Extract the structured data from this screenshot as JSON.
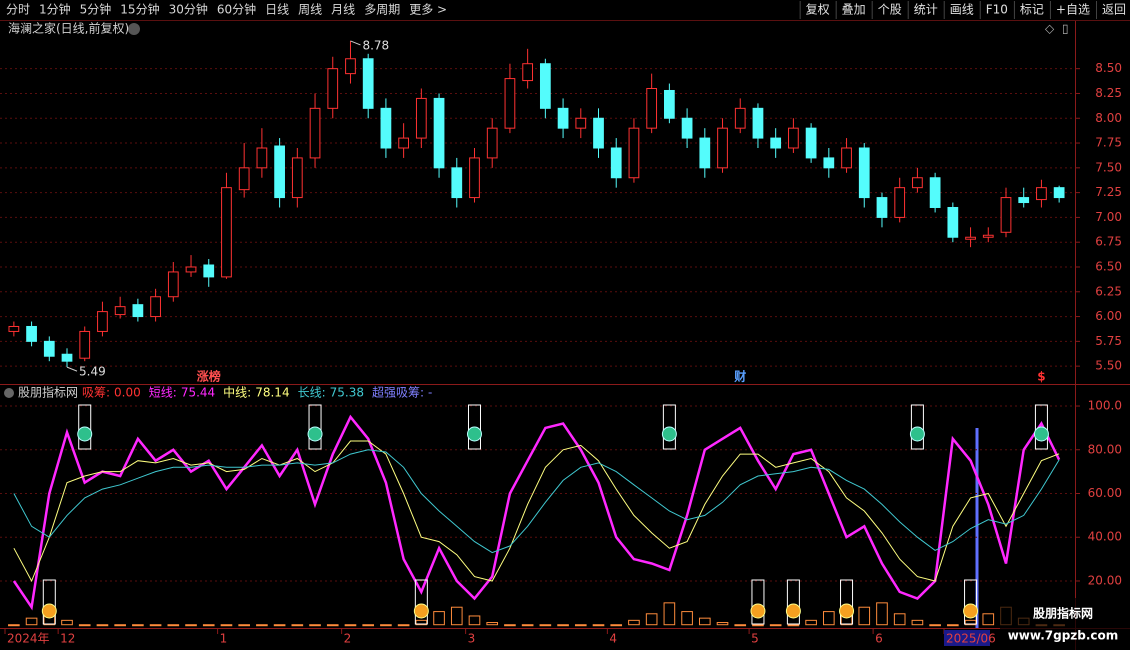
{
  "toolbar": {
    "left": [
      "分时",
      "1分钟",
      "5分钟",
      "15分钟",
      "30分钟",
      "60分钟",
      "日线",
      "周线",
      "月线",
      "多周期",
      "更多 >"
    ],
    "right": [
      "复权",
      "叠加",
      "个股",
      "统计",
      "画线",
      "F10",
      "标记",
      "+自选",
      "返回"
    ]
  },
  "watermark": {
    "title": "股朋指标网",
    "url": "www.7gpzb.com"
  },
  "chart_data": [
    {
      "type": "candlestick",
      "title": "海澜之家(日线,前复权)",
      "categories": [
        "2024年",
        null,
        null,
        "12",
        null,
        null,
        null,
        null,
        null,
        null,
        null,
        null,
        "1",
        null,
        null,
        null,
        null,
        null,
        null,
        "2",
        null,
        null,
        null,
        null,
        null,
        null,
        "3",
        null,
        null,
        null,
        null,
        null,
        null,
        null,
        "4",
        null,
        null,
        null,
        null,
        null,
        null,
        null,
        "5",
        null,
        null,
        null,
        null,
        null,
        null,
        "6",
        null,
        null,
        null,
        "2025/06",
        null,
        null,
        null,
        null,
        null,
        null
      ],
      "open": [
        5.85,
        5.9,
        5.75,
        5.62,
        5.58,
        5.85,
        6.02,
        6.12,
        6.0,
        6.2,
        6.45,
        6.52,
        6.4,
        7.28,
        7.5,
        7.72,
        7.2,
        7.6,
        8.1,
        8.45,
        8.6,
        8.1,
        7.7,
        7.8,
        8.2,
        7.5,
        7.2,
        7.6,
        7.9,
        8.38,
        8.55,
        8.1,
        7.9,
        8.0,
        7.7,
        7.4,
        7.9,
        8.28,
        8.0,
        7.8,
        7.5,
        7.9,
        8.1,
        7.8,
        7.7,
        7.9,
        7.6,
        7.5,
        7.7,
        7.2,
        7.0,
        7.3,
        7.4,
        7.1,
        6.78,
        6.8,
        6.85,
        7.2,
        7.18,
        7.3
      ],
      "high": [
        5.95,
        5.95,
        5.8,
        5.68,
        5.9,
        6.15,
        6.2,
        6.18,
        6.28,
        6.55,
        6.62,
        6.58,
        7.45,
        7.75,
        7.9,
        7.8,
        7.7,
        8.25,
        8.62,
        8.78,
        8.65,
        8.2,
        7.95,
        8.3,
        8.25,
        7.6,
        7.7,
        8.0,
        8.55,
        8.7,
        8.6,
        8.2,
        8.1,
        8.1,
        7.8,
        8.0,
        8.45,
        8.35,
        8.1,
        7.9,
        8.0,
        8.2,
        8.15,
        7.9,
        8.0,
        7.95,
        7.7,
        7.8,
        7.75,
        7.25,
        7.4,
        7.5,
        7.45,
        7.15,
        6.9,
        6.9,
        7.3,
        7.3,
        7.38,
        7.32
      ],
      "low": [
        5.8,
        5.7,
        5.55,
        5.49,
        5.55,
        5.8,
        5.98,
        5.95,
        5.95,
        6.15,
        6.4,
        6.3,
        6.38,
        7.2,
        7.4,
        7.1,
        7.1,
        7.5,
        8.0,
        8.35,
        8.0,
        7.6,
        7.6,
        7.7,
        7.4,
        7.1,
        7.15,
        7.5,
        7.85,
        8.3,
        8.0,
        7.8,
        7.8,
        7.6,
        7.3,
        7.35,
        7.85,
        7.95,
        7.7,
        7.4,
        7.45,
        7.85,
        7.7,
        7.6,
        7.65,
        7.55,
        7.4,
        7.45,
        7.1,
        6.9,
        6.95,
        7.25,
        7.05,
        6.75,
        6.7,
        6.75,
        6.8,
        7.1,
        7.1,
        7.15
      ],
      "close": [
        5.9,
        5.75,
        5.6,
        5.55,
        5.85,
        6.05,
        6.1,
        6.0,
        6.2,
        6.45,
        6.5,
        6.4,
        7.3,
        7.5,
        7.7,
        7.2,
        7.6,
        8.1,
        8.5,
        8.6,
        8.1,
        7.7,
        7.8,
        8.2,
        7.5,
        7.2,
        7.6,
        7.9,
        8.4,
        8.55,
        8.1,
        7.9,
        8.0,
        7.7,
        7.4,
        7.9,
        8.3,
        8.0,
        7.8,
        7.5,
        7.9,
        8.1,
        7.8,
        7.7,
        7.9,
        7.6,
        7.5,
        7.7,
        7.2,
        7.0,
        7.3,
        7.4,
        7.1,
        6.8,
        6.8,
        6.82,
        7.2,
        7.15,
        7.3,
        7.2
      ],
      "up_color": "#ff3232",
      "down_color": "#54fcfc",
      "max_label": 8.78,
      "min_label": 5.49,
      "events": [
        {
          "index": 11,
          "label": "涨榜",
          "color": "#ff5050"
        },
        {
          "index": 41,
          "label": "财",
          "color": "#5aa0ff"
        },
        {
          "index": 58,
          "label": "$",
          "color": "#ff3232"
        }
      ],
      "ylim": [
        5.33,
        8.89
      ],
      "yticks": [
        {
          "value": 5.5,
          "label": "5.50"
        },
        {
          "value": 5.75,
          "label": "5.75"
        },
        {
          "value": 6.0,
          "label": "6.00"
        },
        {
          "value": 6.25,
          "label": "6.25"
        },
        {
          "value": 6.5,
          "label": "6.50"
        },
        {
          "value": 6.75,
          "label": "6.75"
        },
        {
          "value": 7.0,
          "label": "7.00"
        },
        {
          "value": 7.25,
          "label": "7.25"
        },
        {
          "value": 7.5,
          "label": "7.50"
        },
        {
          "value": 7.75,
          "label": "7.75"
        },
        {
          "value": 8.0,
          "label": "8.00"
        },
        {
          "value": 8.25,
          "label": "8.25"
        },
        {
          "value": 8.5,
          "label": "8.50"
        }
      ],
      "grid": true
    },
    {
      "type": "indicator",
      "title": "股朋指标网",
      "series": [
        {
          "name": "吸筹:",
          "kind": "bar",
          "color": "#ff8c3c",
          "value_label": "0.00",
          "values": [
            0,
            3,
            6,
            2,
            0,
            0,
            0,
            0,
            0,
            0,
            0,
            0,
            0,
            0,
            0,
            0,
            0,
            0,
            0,
            0,
            0,
            0,
            0,
            2,
            6,
            8,
            4,
            1,
            0,
            0,
            0,
            0,
            0,
            0,
            0,
            2,
            5,
            10,
            6,
            3,
            1,
            0,
            0,
            0,
            0,
            2,
            6,
            4,
            8,
            10,
            5,
            2,
            0,
            0,
            2,
            5,
            8,
            3,
            0,
            0
          ]
        },
        {
          "name": "短线:",
          "kind": "line",
          "color": "#ff28ff",
          "value_label": "75.44",
          "values": [
            20,
            8,
            60,
            88,
            65,
            70,
            68,
            85,
            75,
            80,
            70,
            75,
            62,
            72,
            82,
            68,
            80,
            55,
            78,
            95,
            85,
            65,
            30,
            15,
            35,
            20,
            12,
            22,
            60,
            75,
            90,
            92,
            80,
            65,
            40,
            30,
            28,
            25,
            50,
            80,
            85,
            90,
            75,
            62,
            78,
            80,
            60,
            40,
            45,
            28,
            15,
            12,
            20,
            85,
            75,
            55,
            28,
            80,
            92,
            75.44
          ]
        },
        {
          "name": "中线:",
          "kind": "line",
          "color": "#ffff80",
          "value_label": "78.14",
          "values": [
            35,
            20,
            40,
            65,
            68,
            70,
            70,
            75,
            74,
            76,
            73,
            74,
            70,
            71,
            76,
            73,
            76,
            70,
            74,
            84,
            84,
            78,
            60,
            40,
            38,
            32,
            22,
            20,
            35,
            55,
            72,
            80,
            82,
            75,
            62,
            50,
            42,
            35,
            38,
            55,
            68,
            78,
            78,
            72,
            74,
            76,
            70,
            58,
            52,
            42,
            30,
            22,
            20,
            45,
            58,
            60,
            45,
            60,
            75,
            78.14
          ]
        },
        {
          "name": "长线:",
          "kind": "line",
          "color": "#40c8d0",
          "value_label": "75.38",
          "values": [
            60,
            45,
            40,
            50,
            58,
            62,
            64,
            67,
            70,
            72,
            72,
            73,
            72,
            72,
            73,
            73,
            74,
            73,
            74,
            78,
            80,
            79,
            72,
            60,
            52,
            45,
            38,
            33,
            36,
            45,
            56,
            66,
            72,
            74,
            70,
            64,
            58,
            52,
            48,
            50,
            56,
            64,
            68,
            69,
            70,
            72,
            71,
            66,
            62,
            55,
            47,
            40,
            34,
            38,
            44,
            48,
            46,
            50,
            62,
            75.38
          ]
        }
      ],
      "extra_readout": {
        "name": "超强吸筹:",
        "value_label": "-",
        "color": "#8080ff"
      },
      "sell_signals": [
        4,
        17,
        26,
        37,
        51,
        58
      ],
      "buy_signals": [
        2,
        23,
        42,
        44,
        47,
        54
      ],
      "ylim": [
        -1.5,
        108.7
      ],
      "yticks": [
        {
          "value": 20,
          "label": "20.00"
        },
        {
          "value": 40,
          "label": "40.00"
        },
        {
          "value": 60,
          "label": "60.00"
        },
        {
          "value": 80,
          "label": "80.00"
        },
        {
          "value": 100,
          "label": "100.0"
        }
      ],
      "grid": true
    }
  ]
}
